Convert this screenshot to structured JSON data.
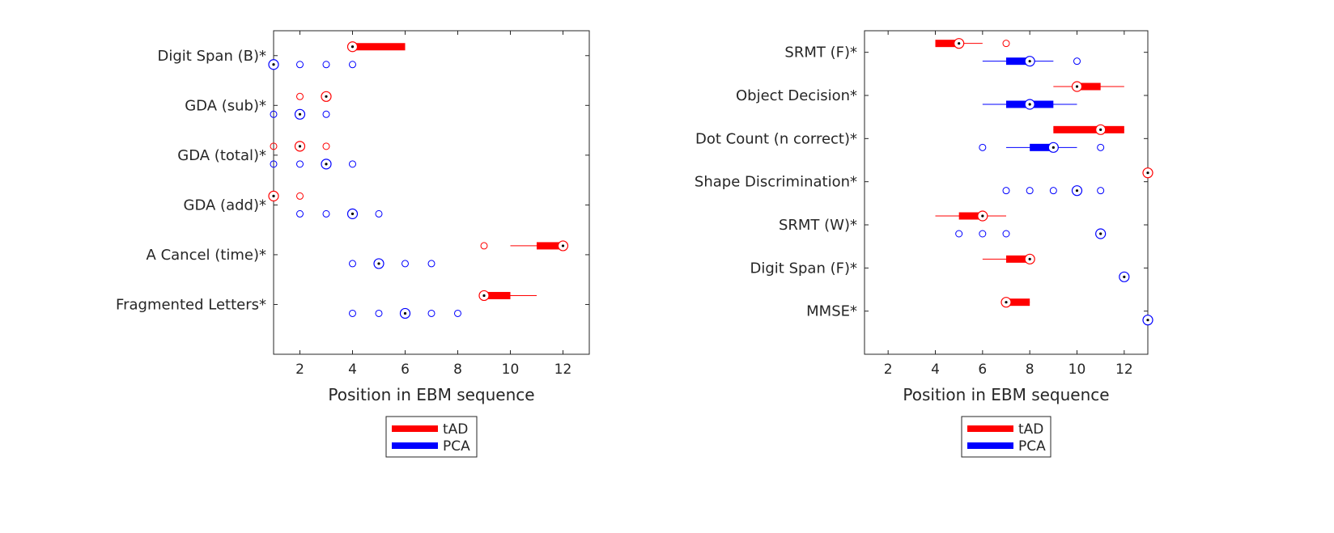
{
  "chart_data": [
    {
      "type": "boxplot",
      "xlabel": "Position in EBM sequence",
      "xlim": [
        1,
        13
      ],
      "xticks": [
        2,
        4,
        6,
        8,
        10,
        12
      ],
      "legend": {
        "placement": "below",
        "entries": [
          "tAD",
          "PCA"
        ]
      },
      "series_colors": {
        "tAD": "#ff0000",
        "PCA": "#0000ff"
      },
      "categories": [
        {
          "label": "Digit Span (B)*",
          "tAD": {
            "median": 4,
            "box": [
              4,
              6
            ],
            "whisker": [
              4,
              6
            ],
            "outliers": []
          },
          "PCA": {
            "median": 1,
            "box": [
              1,
              1
            ],
            "whisker": [
              1,
              1
            ],
            "outliers": [
              2,
              3,
              4
            ]
          }
        },
        {
          "label": "GDA (sub)*",
          "tAD": {
            "median": 3,
            "box": [
              3,
              3
            ],
            "whisker": [
              3,
              3
            ],
            "outliers": [
              2
            ]
          },
          "PCA": {
            "median": 2,
            "box": [
              2,
              2
            ],
            "whisker": [
              2,
              2
            ],
            "outliers": [
              1,
              3
            ]
          }
        },
        {
          "label": "GDA (total)*",
          "tAD": {
            "median": 2,
            "box": [
              2,
              2
            ],
            "whisker": [
              2,
              2
            ],
            "outliers": [
              1,
              3
            ]
          },
          "PCA": {
            "median": 3,
            "box": [
              3,
              3
            ],
            "whisker": [
              3,
              3
            ],
            "outliers": [
              1,
              2,
              4
            ]
          }
        },
        {
          "label": "GDA (add)*",
          "tAD": {
            "median": 1,
            "box": [
              1,
              1
            ],
            "whisker": [
              1,
              1
            ],
            "outliers": [
              2
            ]
          },
          "PCA": {
            "median": 4,
            "box": [
              4,
              4
            ],
            "whisker": [
              4,
              4
            ],
            "outliers": [
              2,
              3,
              5
            ]
          }
        },
        {
          "label": "A Cancel (time)*",
          "tAD": {
            "median": 12,
            "box": [
              11,
              12
            ],
            "whisker": [
              10,
              12
            ],
            "outliers": [
              9
            ]
          },
          "PCA": {
            "median": 5,
            "box": [
              5,
              5
            ],
            "whisker": [
              5,
              5
            ],
            "outliers": [
              4,
              6,
              7
            ]
          }
        },
        {
          "label": "Fragmented Letters*",
          "tAD": {
            "median": 9,
            "box": [
              9,
              10
            ],
            "whisker": [
              9,
              11
            ],
            "outliers": []
          },
          "PCA": {
            "median": 6,
            "box": [
              6,
              6
            ],
            "whisker": [
              6,
              6
            ],
            "outliers": [
              4,
              5,
              7,
              8
            ]
          }
        }
      ]
    },
    {
      "type": "boxplot",
      "xlabel": "Position in EBM sequence",
      "xlim": [
        1,
        13
      ],
      "xticks": [
        2,
        4,
        6,
        8,
        10,
        12
      ],
      "legend": {
        "placement": "below",
        "entries": [
          "tAD",
          "PCA"
        ]
      },
      "series_colors": {
        "tAD": "#ff0000",
        "PCA": "#0000ff"
      },
      "categories": [
        {
          "label": "SRMT (F)*",
          "tAD": {
            "median": 5,
            "box": [
              4,
              5
            ],
            "whisker": [
              4,
              6
            ],
            "outliers": [
              7
            ]
          },
          "PCA": {
            "median": 8,
            "box": [
              7,
              8
            ],
            "whisker": [
              6,
              9
            ],
            "outliers": [
              10
            ]
          }
        },
        {
          "label": "Object Decision*",
          "tAD": {
            "median": 10,
            "box": [
              10,
              11
            ],
            "whisker": [
              9,
              12
            ],
            "outliers": []
          },
          "PCA": {
            "median": 8,
            "box": [
              7,
              9
            ],
            "whisker": [
              6,
              10
            ],
            "outliers": []
          }
        },
        {
          "label": "Dot Count (n correct)*",
          "tAD": {
            "median": 11,
            "box": [
              9,
              12
            ],
            "whisker": [
              9,
              12
            ],
            "outliers": []
          },
          "PCA": {
            "median": 9,
            "box": [
              8,
              9
            ],
            "whisker": [
              7,
              10
            ],
            "outliers": [
              6,
              11
            ]
          }
        },
        {
          "label": "Shape Discrimination*",
          "tAD": {
            "median": 13,
            "box": [
              13,
              13
            ],
            "whisker": [
              13,
              13
            ],
            "outliers": []
          },
          "PCA": {
            "median": 10,
            "box": [
              10,
              10
            ],
            "whisker": [
              10,
              10
            ],
            "outliers": [
              7,
              8,
              9,
              11
            ]
          }
        },
        {
          "label": "SRMT (W)*",
          "tAD": {
            "median": 6,
            "box": [
              5,
              6
            ],
            "whisker": [
              4,
              7
            ],
            "outliers": []
          },
          "PCA": {
            "median": 11,
            "box": [
              11,
              11
            ],
            "whisker": [
              11,
              11
            ],
            "outliers": [
              5,
              6,
              7
            ]
          }
        },
        {
          "label": "Digit Span (F)*",
          "tAD": {
            "median": 8,
            "box": [
              7,
              8
            ],
            "whisker": [
              6,
              8
            ],
            "outliers": []
          },
          "PCA": {
            "median": 12,
            "box": [
              12,
              12
            ],
            "whisker": [
              12,
              12
            ],
            "outliers": []
          }
        },
        {
          "label": "MMSE*",
          "tAD": {
            "median": 7,
            "box": [
              7,
              8
            ],
            "whisker": [
              7,
              8
            ],
            "outliers": []
          },
          "PCA": {
            "median": 13,
            "box": [
              13,
              13
            ],
            "whisker": [
              13,
              13
            ],
            "outliers": []
          }
        }
      ]
    }
  ]
}
